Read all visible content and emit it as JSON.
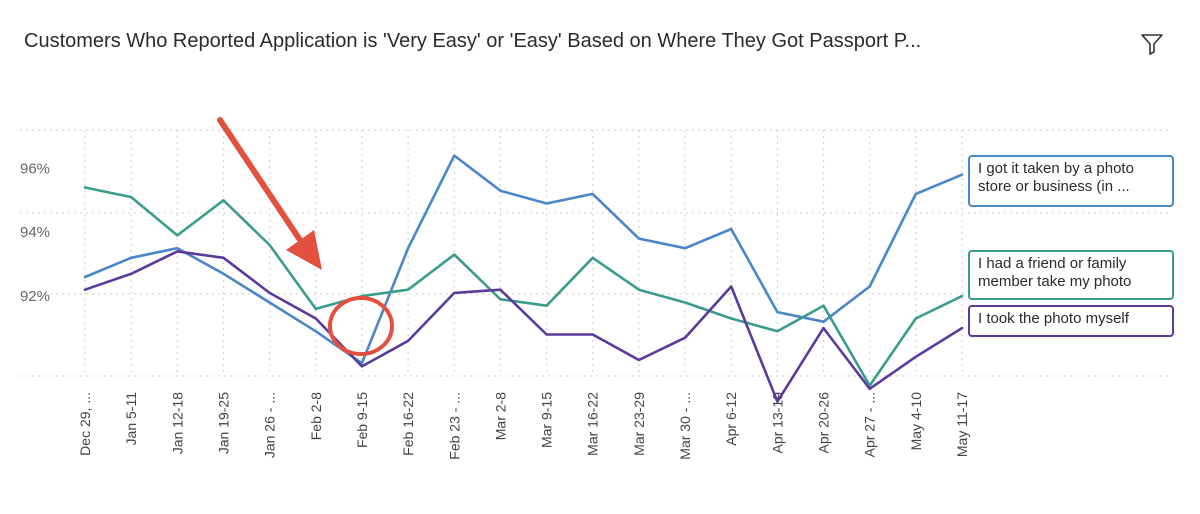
{
  "header": {
    "title": "Customers Who Reported Application is 'Very Easy' or 'Easy' Based on Where They Got Passport P...",
    "filter_icon": "filter-icon"
  },
  "chart_data": {
    "type": "line",
    "title": "Customers Who Reported Application is 'Very Easy' or 'Easy' Based on Where They Got Passport P...",
    "xlabel": "",
    "ylabel": "",
    "categories": [
      "Dec 29, ...",
      "Jan 5-11",
      "Jan 12-18",
      "Jan 19-25",
      "Jan 26 - ...",
      "Feb 2-8",
      "Feb 9-15",
      "Feb 16-22",
      "Feb 23 - ...",
      "Mar 2-8",
      "Mar 9-15",
      "Mar 16-22",
      "Mar 23-29",
      "Mar 30 - ...",
      "Apr 6-12",
      "Apr 13-19",
      "Apr 20-26",
      "Apr 27 - ...",
      "May 4-10",
      "May 11-17"
    ],
    "y_ticks": [
      "96%",
      "94%",
      "92%"
    ],
    "y_tick_values": [
      96,
      94,
      92
    ],
    "ylim": [
      89.5,
      97.2
    ],
    "grid": true,
    "legend_placement": "right",
    "series": [
      {
        "name": "I got it taken by a photo store or business (in ...",
        "name_lines": [
          "I got it taken by a photo",
          "store or business (in ..."
        ],
        "color": "#4a86c8",
        "values": [
          92.6,
          93.2,
          93.5,
          92.7,
          91.8,
          90.9,
          89.9,
          93.5,
          96.4,
          95.3,
          94.9,
          95.2,
          93.8,
          93.5,
          94.1,
          91.5,
          91.2,
          92.3,
          95.2,
          95.8
        ]
      },
      {
        "name": "I had a friend or family member take my photo",
        "name_lines": [
          "I had a friend or family",
          "member take my photo"
        ],
        "color": "#3a9c8c",
        "values": [
          95.4,
          95.1,
          93.9,
          95.0,
          93.6,
          91.6,
          92.0,
          92.2,
          93.3,
          91.9,
          91.7,
          93.2,
          92.2,
          91.8,
          91.3,
          90.9,
          91.7,
          89.2,
          91.3,
          92.0
        ]
      },
      {
        "name": "I took the photo myself",
        "name_lines": [
          "I took the photo myself"
        ],
        "color": "#5a3a9a",
        "values": [
          92.2,
          92.7,
          93.4,
          93.2,
          92.1,
          91.3,
          89.8,
          90.6,
          92.1,
          92.2,
          90.8,
          90.8,
          90.0,
          90.7,
          92.3,
          88.7,
          91.0,
          89.1,
          90.1,
          91.0
        ]
      }
    ]
  }
}
